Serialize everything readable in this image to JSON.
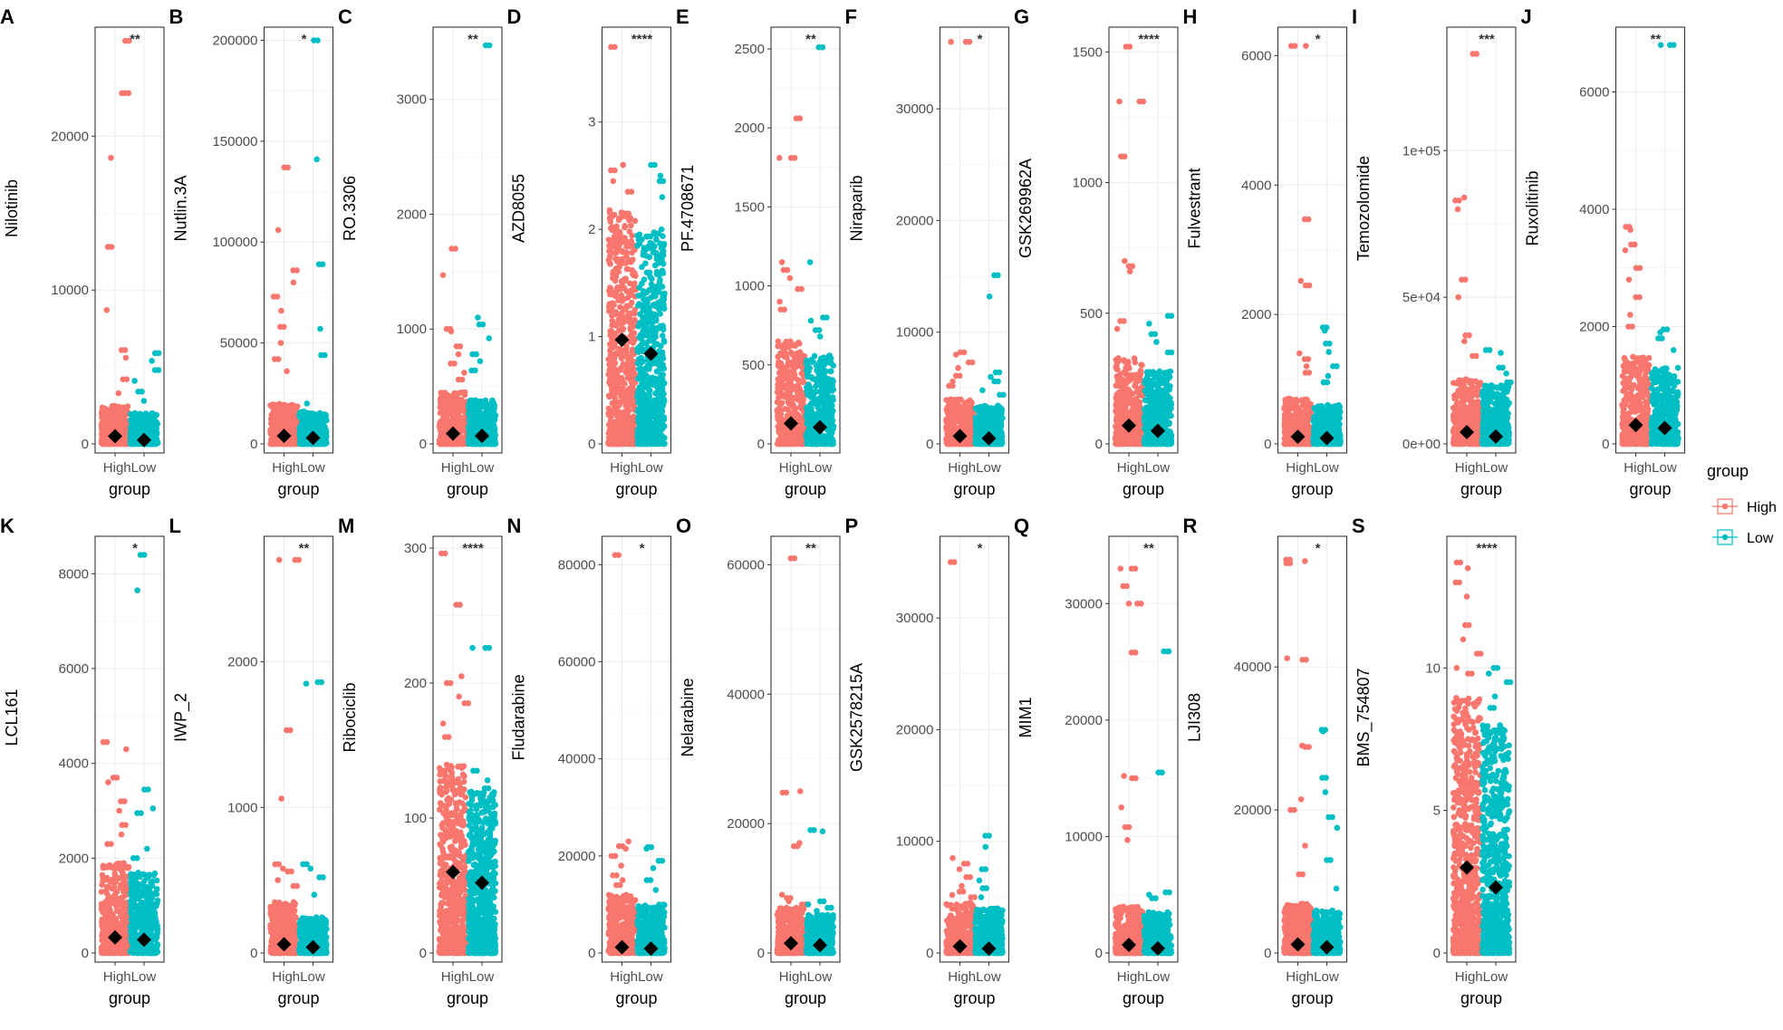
{
  "colors": {
    "high": "#F8766D",
    "low": "#00BFC4",
    "mean": "#000000",
    "grid": "#EBEBEB",
    "frame": "#333333"
  },
  "legend": {
    "title": "group",
    "items": [
      {
        "label": "High",
        "color": "#F8766D"
      },
      {
        "label": "Low",
        "color": "#00BFC4"
      }
    ]
  },
  "chart_data": [
    {
      "panel": "A",
      "type": "scatter",
      "ylabel": "Nilotinib",
      "xlabel": "group",
      "categories": [
        "High",
        "Low"
      ],
      "sig": "**",
      "ylim": [
        0,
        26500
      ],
      "yticks": [
        0,
        10000,
        20000
      ],
      "ytick_labels": [
        "0",
        "10000",
        "20000"
      ],
      "means": [
        500,
        250
      ],
      "bulk": [
        2500,
        2000
      ],
      "high_outliers": [
        26200,
        22800,
        22800,
        18600,
        12800,
        8700,
        6100,
        5600,
        4200,
        3300
      ],
      "low_outliers": [
        5900,
        5400,
        4800,
        4100,
        3400,
        2800
      ]
    },
    {
      "panel": "B",
      "type": "scatter",
      "ylabel": "Nutlin.3A",
      "xlabel": "group",
      "categories": [
        "High",
        "Low"
      ],
      "sig": "*",
      "ylim": [
        0,
        202000
      ],
      "yticks": [
        0,
        50000,
        100000,
        150000,
        200000
      ],
      "ytick_labels": [
        "0",
        "50000",
        "100000",
        "150000",
        "200000"
      ],
      "means": [
        4000,
        3000
      ],
      "bulk": [
        20000,
        16000
      ],
      "high_outliers": [
        137000,
        106000,
        86000,
        80000,
        73000,
        66000,
        58000,
        50000,
        42000,
        36000
      ],
      "low_outliers": [
        200000,
        141000,
        89000,
        57000,
        44000,
        20000
      ]
    },
    {
      "panel": "C",
      "type": "scatter",
      "ylabel": "RO.3306",
      "xlabel": "group",
      "categories": [
        "High",
        "Low"
      ],
      "sig": "**",
      "ylim": [
        0,
        3550
      ],
      "yticks": [
        0,
        1000,
        2000,
        3000
      ],
      "ytick_labels": [
        "0",
        "1000",
        "2000",
        "3000"
      ],
      "means": [
        90,
        70
      ],
      "bulk": [
        450,
        380
      ],
      "high_outliers": [
        1700,
        1470,
        1000,
        980,
        850,
        780,
        700,
        620,
        560
      ],
      "low_outliers": [
        3470,
        1100,
        1040,
        920,
        780,
        720,
        640
      ]
    },
    {
      "panel": "D",
      "type": "scatter",
      "ylabel": "AZD8055",
      "xlabel": "group",
      "categories": [
        "High",
        "Low"
      ],
      "sig": "****",
      "ylim": [
        0,
        3.8
      ],
      "yticks": [
        0,
        1,
        2,
        3
      ],
      "ytick_labels": [
        "0",
        "1",
        "2",
        "3"
      ],
      "means": [
        0.97,
        0.84
      ],
      "bulk": [
        2.2,
        2.0
      ],
      "high_outliers": [
        3.7,
        2.6,
        2.55,
        2.45,
        2.35,
        0.2,
        0.1
      ],
      "low_outliers": [
        2.6,
        2.5,
        2.45,
        2.3,
        0.25,
        0.18
      ]
    },
    {
      "panel": "E",
      "type": "scatter",
      "ylabel": "PF.4708671",
      "xlabel": "group",
      "categories": [
        "High",
        "Low"
      ],
      "sig": "**",
      "ylim": [
        0,
        2580
      ],
      "yticks": [
        0,
        500,
        1000,
        1500,
        2000,
        2500
      ],
      "ytick_labels": [
        "0",
        "500",
        "1000",
        "1500",
        "2000",
        "2500"
      ],
      "means": [
        130,
        105
      ],
      "bulk": [
        650,
        560
      ],
      "high_outliers": [
        2060,
        1810,
        1810,
        1150,
        1100,
        1050,
        980,
        900,
        850
      ],
      "low_outliers": [
        2510,
        1150,
        800,
        780,
        720,
        680
      ]
    },
    {
      "panel": "F",
      "type": "scatter",
      "ylabel": "Niraparib",
      "xlabel": "group",
      "categories": [
        "High",
        "Low"
      ],
      "sig": "*",
      "ylim": [
        0,
        36500
      ],
      "yticks": [
        0,
        10000,
        20000,
        30000
      ],
      "ytick_labels": [
        "0",
        "10000",
        "20000",
        "30000"
      ],
      "means": [
        700,
        500
      ],
      "bulk": [
        4000,
        3500
      ],
      "high_outliers": [
        36000,
        36000,
        8200,
        8000,
        7300,
        6800,
        6100,
        5600,
        5200
      ],
      "low_outliers": [
        15100,
        13200,
        6400,
        6000,
        5600,
        4800,
        4400
      ]
    },
    {
      "panel": "G",
      "type": "scatter",
      "ylabel": "GSK269962A",
      "xlabel": "group",
      "categories": [
        "High",
        "Low"
      ],
      "sig": "****",
      "ylim": [
        0,
        1560
      ],
      "yticks": [
        0,
        500,
        1000,
        1500
      ],
      "ytick_labels": [
        "0",
        "500",
        "1000",
        "1500"
      ],
      "means": [
        70,
        50
      ],
      "bulk": [
        330,
        280
      ],
      "high_outliers": [
        1520,
        1310,
        1310,
        1100,
        1100,
        700,
        680,
        660,
        470,
        440
      ],
      "low_outliers": [
        490,
        460,
        420,
        390,
        350
      ]
    },
    {
      "panel": "H",
      "type": "scatter",
      "ylabel": "Fulvestrant",
      "xlabel": "group",
      "categories": [
        "High",
        "Low"
      ],
      "sig": "*",
      "ylim": [
        0,
        6300
      ],
      "yticks": [
        0,
        2000,
        4000,
        6000
      ],
      "ytick_labels": [
        "0",
        "2000",
        "4000",
        "6000"
      ],
      "means": [
        110,
        90
      ],
      "bulk": [
        700,
        600
      ],
      "high_outliers": [
        6150,
        6150,
        3470,
        2520,
        2450,
        1400,
        1310,
        1200,
        1100
      ],
      "low_outliers": [
        1800,
        1750,
        1550,
        1420,
        1200,
        1050,
        950
      ]
    },
    {
      "panel": "I",
      "type": "scatter",
      "ylabel": "Temozolomide",
      "xlabel": "group",
      "categories": [
        "High",
        "Low"
      ],
      "sig": "***",
      "ylim": [
        0,
        139000
      ],
      "yticks": [
        0,
        50000,
        100000
      ],
      "ytick_labels": [
        "0e+00",
        "5e+04",
        "1e+05"
      ],
      "means": [
        4000,
        2500
      ],
      "bulk": [
        22000,
        20000
      ],
      "high_outliers": [
        133000,
        84000,
        83000,
        80000,
        56000,
        50000,
        37000,
        35000,
        30000
      ],
      "low_outliers": [
        32000,
        31000,
        26000,
        24000,
        21000
      ]
    },
    {
      "panel": "J",
      "type": "scatter",
      "ylabel": "Ruxolitinib",
      "xlabel": "group",
      "categories": [
        "High",
        "Low"
      ],
      "sig": "**",
      "ylim": [
        0,
        6950
      ],
      "yticks": [
        0,
        2000,
        4000,
        6000
      ],
      "ytick_labels": [
        "0",
        "2000",
        "4000",
        "6000"
      ],
      "means": [
        320,
        270
      ],
      "bulk": [
        1500,
        1300
      ],
      "high_outliers": [
        3700,
        3650,
        3400,
        3300,
        3000,
        2800,
        2500,
        2200,
        2000
      ],
      "low_outliers": [
        6800,
        6800,
        1950,
        1900,
        1800,
        1600
      ]
    },
    {
      "panel": "K",
      "type": "scatter",
      "ylabel": "LCL161",
      "xlabel": "group",
      "categories": [
        "High",
        "Low"
      ],
      "sig": "*",
      "ylim": [
        0,
        8600
      ],
      "yticks": [
        0,
        2000,
        4000,
        6000,
        8000
      ],
      "ytick_labels": [
        "0",
        "2000",
        "4000",
        "6000",
        "8000"
      ],
      "means": [
        330,
        280
      ],
      "bulk": [
        1900,
        1700
      ],
      "high_outliers": [
        4450,
        4300,
        3700,
        3600,
        3200,
        3000,
        2700,
        2500,
        2300
      ],
      "low_outliers": [
        8400,
        7650,
        3450,
        3050,
        2950,
        2200,
        2000
      ]
    },
    {
      "panel": "L",
      "type": "scatter",
      "ylabel": "IWP_2",
      "xlabel": "group",
      "categories": [
        "High",
        "Low"
      ],
      "sig": "**",
      "ylim": [
        0,
        2800
      ],
      "yticks": [
        0,
        1000,
        2000
      ],
      "ytick_labels": [
        "0",
        "1000",
        "2000"
      ],
      "means": [
        60,
        40
      ],
      "bulk": [
        350,
        250
      ],
      "high_outliers": [
        2700,
        2700,
        1530,
        1060,
        610,
        580,
        560,
        500,
        460
      ],
      "low_outliers": [
        1860,
        1850,
        610,
        580,
        520,
        400
      ]
    },
    {
      "panel": "M",
      "type": "scatter",
      "ylabel": "Ribociclib",
      "xlabel": "group",
      "categories": [
        "High",
        "Low"
      ],
      "sig": "****",
      "ylim": [
        0,
        302
      ],
      "yticks": [
        0,
        100,
        200,
        300
      ],
      "ytick_labels": [
        "0",
        "100",
        "200",
        "300"
      ],
      "means": [
        60,
        52
      ],
      "bulk": [
        140,
        120
      ],
      "high_outliers": [
        296,
        258,
        258,
        205,
        200,
        190,
        185,
        170,
        160
      ],
      "low_outliers": [
        226,
        226,
        135,
        128,
        122
      ]
    },
    {
      "panel": "N",
      "type": "scatter",
      "ylabel": "Fludarabine",
      "xlabel": "group",
      "categories": [
        "High",
        "Low"
      ],
      "sig": "*",
      "ylim": [
        0,
        84000
      ],
      "yticks": [
        0,
        20000,
        40000,
        60000,
        80000
      ],
      "ytick_labels": [
        "0",
        "20000",
        "40000",
        "60000",
        "80000"
      ],
      "means": [
        1200,
        900
      ],
      "bulk": [
        12000,
        10000
      ],
      "high_outliers": [
        82000,
        23000,
        22000,
        21500,
        20000,
        18000,
        16000,
        15000,
        14000
      ],
      "low_outliers": [
        21800,
        21500,
        19000,
        17500,
        15000,
        13000
      ]
    },
    {
      "panel": "O",
      "type": "scatter",
      "ylabel": "Nelarabine",
      "xlabel": "group",
      "categories": [
        "High",
        "Low"
      ],
      "sig": "**",
      "ylim": [
        0,
        63000
      ],
      "yticks": [
        0,
        20000,
        40000,
        60000
      ],
      "ytick_labels": [
        "0",
        "20000",
        "40000",
        "60000"
      ],
      "means": [
        1500,
        1200
      ],
      "bulk": [
        7000,
        6000
      ],
      "high_outliers": [
        61000,
        25000,
        24800,
        17000,
        16500,
        9000,
        8500,
        8000,
        7500
      ],
      "low_outliers": [
        19000,
        18800,
        8000,
        7500,
        7000,
        6500
      ]
    },
    {
      "panel": "P",
      "type": "scatter",
      "ylabel": "GSK2578215A",
      "xlabel": "group",
      "categories": [
        "High",
        "Low"
      ],
      "sig": "*",
      "ylim": [
        0,
        36500
      ],
      "yticks": [
        0,
        10000,
        20000,
        30000
      ],
      "ytick_labels": [
        "0",
        "10000",
        "20000",
        "30000"
      ],
      "means": [
        600,
        400
      ],
      "bulk": [
        4500,
        4000
      ],
      "high_outliers": [
        35000,
        8500,
        8000,
        7500,
        6800,
        6000,
        5500,
        5200,
        5000
      ],
      "low_outliers": [
        10500,
        9500,
        7500,
        6500,
        5800,
        5000
      ]
    },
    {
      "panel": "Q",
      "type": "scatter",
      "ylabel": "MIM1",
      "xlabel": "group",
      "categories": [
        "High",
        "Low"
      ],
      "sig": "**",
      "ylim": [
        0,
        35000
      ],
      "yticks": [
        0,
        10000,
        20000,
        30000
      ],
      "ytick_labels": [
        "0",
        "10000",
        "20000",
        "30000"
      ],
      "means": [
        700,
        400
      ],
      "bulk": [
        4000,
        3500
      ],
      "high_outliers": [
        33000,
        33000,
        31500,
        30000,
        30000,
        25800,
        25800,
        15200,
        15000,
        12500,
        10800,
        9700
      ],
      "low_outliers": [
        25900,
        25900,
        15500,
        15500,
        5200,
        5000,
        4700
      ]
    },
    {
      "panel": "R",
      "type": "scatter",
      "ylabel": "LJI308",
      "xlabel": "group",
      "categories": [
        "High",
        "Low"
      ],
      "sig": "*",
      "ylim": [
        0,
        57000
      ],
      "yticks": [
        0,
        20000,
        40000
      ],
      "ytick_labels": [
        "0",
        "20000",
        "40000"
      ],
      "means": [
        1200,
        800
      ],
      "bulk": [
        7000,
        6000
      ],
      "high_outliers": [
        55000,
        54800,
        54500,
        41200,
        41000,
        29000,
        28800,
        21500,
        20000,
        15000,
        11000
      ],
      "low_outliers": [
        31200,
        31000,
        24500,
        22500,
        19000,
        17500,
        13000,
        9000
      ]
    },
    {
      "panel": "S",
      "type": "scatter",
      "ylabel": "BMS_754807",
      "xlabel": "group",
      "categories": [
        "High",
        "Low"
      ],
      "sig": "****",
      "ylim": [
        0,
        14.3
      ],
      "yticks": [
        0,
        5,
        10
      ],
      "ytick_labels": [
        "0",
        "5",
        "10"
      ],
      "means": [
        3.0,
        2.3
      ],
      "bulk": [
        9.0,
        8.0
      ],
      "high_outliers": [
        13.7,
        13.5,
        13.0,
        12.5,
        11.5,
        11.0,
        10.5,
        10.0,
        9.8
      ],
      "low_outliers": [
        10.0,
        9.8,
        9.5,
        9.0,
        8.6
      ]
    }
  ]
}
